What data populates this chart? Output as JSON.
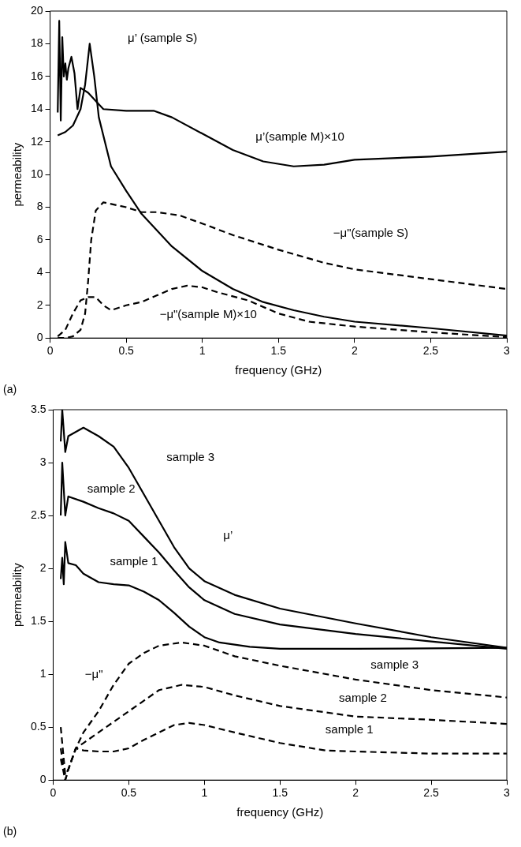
{
  "chart_data": [
    {
      "type": "line",
      "xlabel": "frequency (GHz)",
      "ylabel": "permeability",
      "xlim": [
        0,
        3
      ],
      "xticks": [
        0,
        0.5,
        1,
        1.5,
        2,
        2.5,
        3
      ],
      "ylim": [
        0,
        20
      ],
      "yticks": [
        0,
        2,
        4,
        6,
        8,
        10,
        12,
        14,
        16,
        18,
        20
      ],
      "marker": "none",
      "legend": false,
      "series": [
        {
          "color": "#000000",
          "line_style": "solid",
          "x": [
            0.05,
            0.1,
            0.15,
            0.2,
            0.23,
            0.26,
            0.29,
            0.32,
            0.4,
            0.5,
            0.6,
            0.8,
            1.0,
            1.2,
            1.4,
            1.6,
            1.8,
            2.0,
            2.5,
            3.0
          ],
          "values": [
            12.4,
            12.6,
            13,
            14,
            15.5,
            18,
            16,
            13.5,
            10.5,
            9,
            7.6,
            5.6,
            4.1,
            3,
            2.2,
            1.7,
            1.3,
            1,
            0.6,
            0.15
          ]
        },
        {
          "color": "#000000",
          "line_style": "solid",
          "x": [
            0.05,
            0.06,
            0.07,
            0.08,
            0.09,
            0.1,
            0.11,
            0.12,
            0.14,
            0.16,
            0.18,
            0.2,
            0.25,
            0.3,
            0.35,
            0.5,
            0.68,
            0.8,
            1.0,
            1.2,
            1.4,
            1.6,
            1.8,
            2.0,
            2.5,
            3.0
          ],
          "values": [
            13.8,
            19.4,
            13.3,
            18.4,
            16,
            16.8,
            15.8,
            16.5,
            17.2,
            16.2,
            14,
            15.3,
            15,
            14.5,
            14,
            13.9,
            13.9,
            13.5,
            12.5,
            11.5,
            10.8,
            10.5,
            10.6,
            10.9,
            11.1,
            11.4
          ]
        },
        {
          "color": "#000000",
          "line_style": "dashed",
          "x": [
            0.05,
            0.1,
            0.15,
            0.2,
            0.23,
            0.25,
            0.27,
            0.3,
            0.35,
            0.5,
            0.6,
            0.7,
            0.85,
            1.0,
            1.2,
            1.5,
            1.8,
            2.0,
            2.5,
            3.0
          ],
          "values": [
            0,
            0,
            0.1,
            0.5,
            1.5,
            3.5,
            6,
            7.8,
            8.3,
            8,
            7.7,
            7.7,
            7.5,
            7,
            6.3,
            5.4,
            4.6,
            4.2,
            3.6,
            3
          ]
        },
        {
          "color": "#000000",
          "line_style": "dashed",
          "x": [
            0.05,
            0.1,
            0.15,
            0.2,
            0.25,
            0.3,
            0.35,
            0.4,
            0.5,
            0.6,
            0.7,
            0.8,
            0.9,
            1.0,
            1.1,
            1.3,
            1.5,
            1.7,
            2.0,
            2.5,
            3.0
          ],
          "values": [
            0.1,
            0.5,
            1.5,
            2.3,
            2.5,
            2.5,
            2,
            1.7,
            2,
            2.2,
            2.6,
            3,
            3.2,
            3.1,
            2.8,
            2.3,
            1.5,
            1,
            0.7,
            0.35,
            0.05
          ]
        }
      ],
      "annotations": [
        "μ’ (sample S)",
        "μ’(sample M)×10",
        "−μ\"(sample S)",
        "−μ\"(sample M)×10",
        "(a)"
      ]
    },
    {
      "type": "line",
      "xlabel": "frequency (GHz)",
      "ylabel": "permeability",
      "xlim": [
        0,
        3
      ],
      "xticks": [
        0,
        0.5,
        1,
        1.5,
        2,
        2.5,
        3
      ],
      "ylim": [
        0,
        3.5
      ],
      "yticks": [
        0,
        0.5,
        1,
        1.5,
        2,
        2.5,
        3,
        3.5
      ],
      "marker": "none",
      "legend": false,
      "series": [
        {
          "color": "#000000",
          "line_style": "solid",
          "x": [
            0.05,
            0.06,
            0.08,
            0.1,
            0.2,
            0.3,
            0.4,
            0.5,
            0.6,
            0.7,
            0.8,
            0.9,
            1.0,
            1.2,
            1.5,
            2.0,
            2.5,
            3.0
          ],
          "values": [
            3.2,
            3.5,
            3.1,
            3.25,
            3.33,
            3.25,
            3.15,
            2.95,
            2.7,
            2.45,
            2.2,
            2,
            1.88,
            1.75,
            1.62,
            1.48,
            1.35,
            1.25
          ]
        },
        {
          "color": "#000000",
          "line_style": "solid",
          "x": [
            0.05,
            0.06,
            0.08,
            0.1,
            0.2,
            0.3,
            0.4,
            0.5,
            0.6,
            0.7,
            0.8,
            0.9,
            1.0,
            1.2,
            1.5,
            2.0,
            2.5,
            3.0
          ],
          "values": [
            2.5,
            3,
            2.5,
            2.68,
            2.63,
            2.57,
            2.52,
            2.45,
            2.3,
            2.15,
            1.98,
            1.82,
            1.7,
            1.57,
            1.47,
            1.38,
            1.31,
            1.24
          ]
        },
        {
          "color": "#000000",
          "line_style": "solid",
          "x": [
            0.05,
            0.06,
            0.07,
            0.08,
            0.1,
            0.15,
            0.2,
            0.3,
            0.4,
            0.5,
            0.6,
            0.7,
            0.8,
            0.9,
            1.0,
            1.1,
            1.3,
            1.5,
            2.0,
            3.0
          ],
          "values": [
            1.9,
            2.1,
            1.85,
            2.25,
            2.05,
            2.03,
            1.95,
            1.87,
            1.85,
            1.84,
            1.78,
            1.7,
            1.58,
            1.45,
            1.35,
            1.3,
            1.26,
            1.24,
            1.24,
            1.25
          ]
        },
        {
          "color": "#000000",
          "line_style": "dashed",
          "x": [
            0.05,
            0.08,
            0.1,
            0.15,
            0.2,
            0.3,
            0.4,
            0.5,
            0.6,
            0.7,
            0.85,
            1.0,
            1.2,
            1.5,
            2.0,
            2.5,
            3.0
          ],
          "values": [
            0.5,
            0.05,
            0.1,
            0.3,
            0.45,
            0.65,
            0.9,
            1.1,
            1.2,
            1.27,
            1.3,
            1.27,
            1.17,
            1.08,
            0.95,
            0.85,
            0.78
          ]
        },
        {
          "color": "#000000",
          "line_style": "dashed",
          "x": [
            0.05,
            0.08,
            0.1,
            0.15,
            0.2,
            0.3,
            0.4,
            0.5,
            0.6,
            0.7,
            0.85,
            1.0,
            1.2,
            1.5,
            2.0,
            2.5,
            3.0
          ],
          "values": [
            0.3,
            0,
            0.1,
            0.3,
            0.35,
            0.45,
            0.55,
            0.65,
            0.75,
            0.85,
            0.9,
            0.88,
            0.8,
            0.7,
            0.6,
            0.57,
            0.53
          ]
        },
        {
          "color": "#000000",
          "line_style": "dashed",
          "x": [
            0.05,
            0.08,
            0.1,
            0.15,
            0.2,
            0.3,
            0.4,
            0.5,
            0.6,
            0.7,
            0.8,
            0.9,
            1.0,
            1.2,
            1.5,
            1.8,
            2.0,
            2.5,
            3.0
          ],
          "values": [
            0.2,
            0,
            0.1,
            0.3,
            0.28,
            0.27,
            0.27,
            0.3,
            0.38,
            0.45,
            0.52,
            0.54,
            0.52,
            0.45,
            0.35,
            0.28,
            0.27,
            0.25,
            0.25
          ]
        }
      ],
      "annotations": [
        "sample 3",
        "sample 2",
        "sample 1",
        "μ’",
        "−μ\"",
        "sample 3",
        "sample 2",
        "sample 1",
        "(b)"
      ]
    }
  ]
}
